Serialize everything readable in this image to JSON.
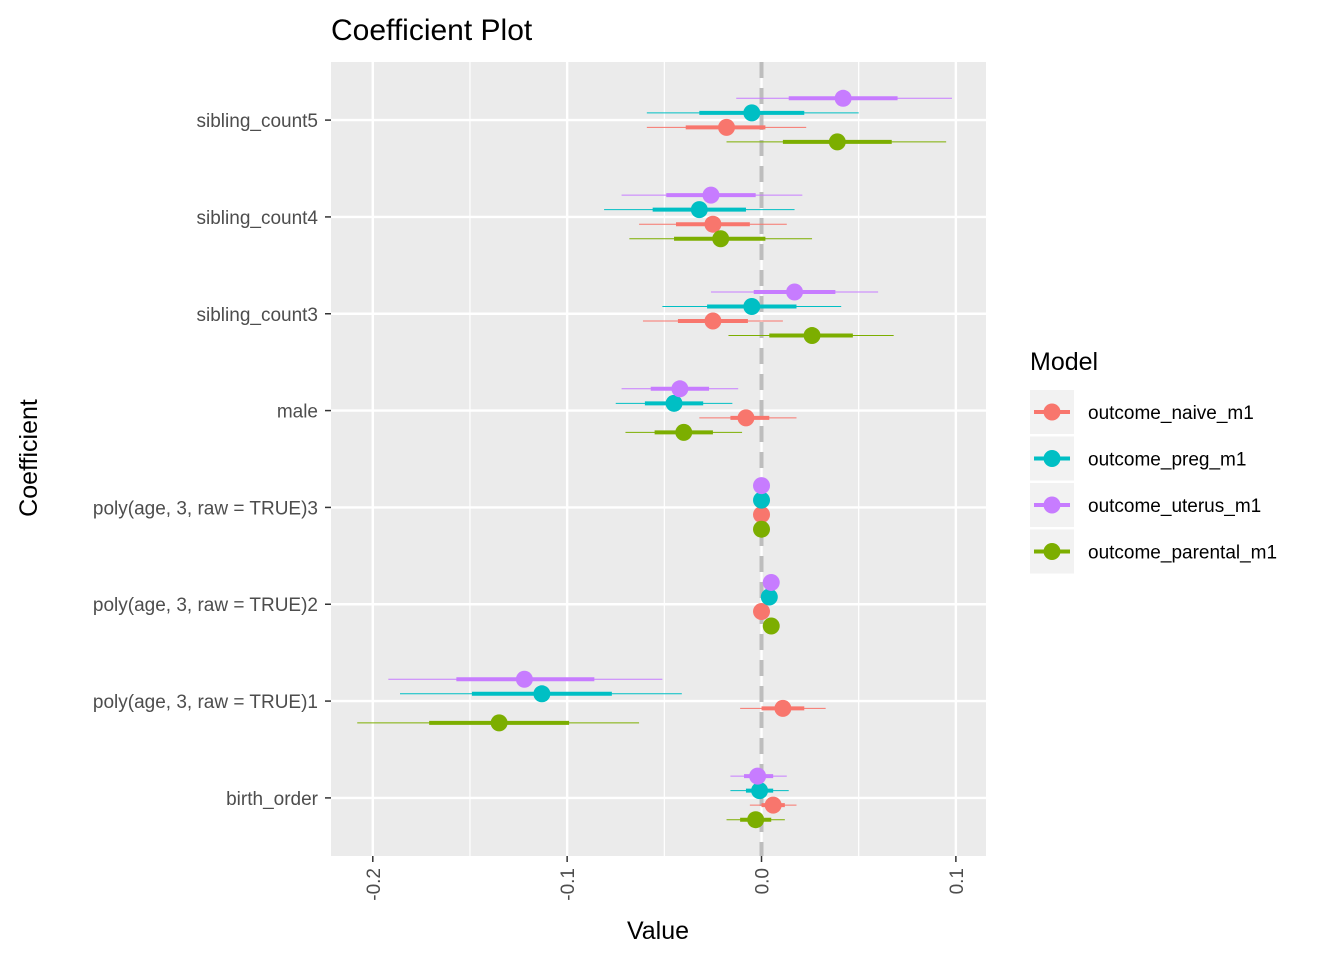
{
  "chart_data": {
    "type": "scatter",
    "title": "Coefficient Plot",
    "xlabel": "Value",
    "ylabel": "Coefficient",
    "xlim": [
      -0.2215,
      0.1155
    ],
    "x_ticks": [
      {
        "value": -0.2,
        "label": "-0.2"
      },
      {
        "value": -0.1,
        "label": "-0.1"
      },
      {
        "value": 0.0,
        "label": "0.0"
      },
      {
        "value": 0.1,
        "label": "0.1"
      }
    ],
    "reference_line": {
      "x": 0,
      "style": "dashed",
      "color": "#bdbdbd"
    },
    "categories": [
      "birth_order",
      "poly(age, 3, raw = TRUE)1",
      "poly(age, 3, raw = TRUE)2",
      "poly(age, 3, raw = TRUE)3",
      "male",
      "sibling_count3",
      "sibling_count4",
      "sibling_count5"
    ],
    "legend": {
      "title": "Model",
      "position": "right"
    },
    "grid": true,
    "panel_background": "#ebebeb",
    "series": [
      {
        "name": "outcome_naive_m1",
        "color": "#f8766d",
        "offset": -0.075,
        "estimates": [
          0.006,
          0.011,
          0.0,
          0.0,
          -0.008,
          -0.025,
          -0.025,
          -0.018
        ],
        "inner": [
          [
            0.0,
            0.012
          ],
          [
            0.0,
            0.022
          ],
          [
            0.0,
            0.0
          ],
          [
            0.0,
            0.0
          ],
          [
            -0.016,
            0.004
          ],
          [
            -0.043,
            -0.007
          ],
          [
            -0.044,
            -0.006
          ],
          [
            -0.039,
            0.002
          ]
        ],
        "outer": [
          [
            -0.006,
            0.018
          ],
          [
            -0.011,
            0.033
          ],
          [
            0.0,
            0.0
          ],
          [
            0.0,
            0.0
          ],
          [
            -0.032,
            0.018
          ],
          [
            -0.061,
            0.011
          ],
          [
            -0.063,
            0.013
          ],
          [
            -0.059,
            0.023
          ]
        ]
      },
      {
        "name": "outcome_preg_m1",
        "color": "#00bfc4",
        "offset": 0.075,
        "estimates": [
          -0.001,
          -0.113,
          0.004,
          0.0,
          -0.045,
          -0.005,
          -0.032,
          -0.005
        ],
        "inner": [
          [
            -0.008,
            0.006
          ],
          [
            -0.149,
            -0.077
          ],
          [
            0.004,
            0.004
          ],
          [
            0.0,
            0.0
          ],
          [
            -0.06,
            -0.03
          ],
          [
            -0.028,
            0.018
          ],
          [
            -0.056,
            -0.008
          ],
          [
            -0.032,
            0.022
          ]
        ],
        "outer": [
          [
            -0.016,
            0.014
          ],
          [
            -0.186,
            -0.041
          ],
          [
            0.004,
            0.004
          ],
          [
            0.0,
            0.0
          ],
          [
            -0.075,
            -0.015
          ],
          [
            -0.051,
            0.041
          ],
          [
            -0.081,
            0.017
          ],
          [
            -0.059,
            0.05
          ]
        ]
      },
      {
        "name": "outcome_uterus_m1",
        "color": "#c77cff",
        "offset": 0.225,
        "estimates": [
          -0.002,
          -0.122,
          0.005,
          0.0,
          -0.042,
          0.017,
          -0.026,
          0.042
        ],
        "inner": [
          [
            -0.009,
            0.006
          ],
          [
            -0.157,
            -0.086
          ],
          [
            0.005,
            0.005
          ],
          [
            0.0,
            0.0
          ],
          [
            -0.057,
            -0.027
          ],
          [
            -0.004,
            0.038
          ],
          [
            -0.049,
            -0.003
          ],
          [
            0.014,
            0.07
          ]
        ],
        "outer": [
          [
            -0.016,
            0.013
          ],
          [
            -0.192,
            -0.051
          ],
          [
            0.005,
            0.005
          ],
          [
            0.0,
            0.0
          ],
          [
            -0.072,
            -0.012
          ],
          [
            -0.026,
            0.06
          ],
          [
            -0.072,
            0.021
          ],
          [
            -0.013,
            0.098
          ]
        ]
      },
      {
        "name": "outcome_parental_m1",
        "color": "#7cae00",
        "offset": -0.225,
        "estimates": [
          -0.003,
          -0.135,
          0.005,
          0.0,
          -0.04,
          0.026,
          -0.021,
          0.039
        ],
        "inner": [
          [
            -0.011,
            0.005
          ],
          [
            -0.171,
            -0.099
          ],
          [
            0.005,
            0.005
          ],
          [
            0.0,
            0.0
          ],
          [
            -0.055,
            -0.025
          ],
          [
            0.004,
            0.047
          ],
          [
            -0.045,
            0.002
          ],
          [
            0.011,
            0.067
          ]
        ],
        "outer": [
          [
            -0.018,
            0.012
          ],
          [
            -0.208,
            -0.063
          ],
          [
            0.005,
            0.005
          ],
          [
            0.0,
            0.0
          ],
          [
            -0.07,
            -0.01
          ],
          [
            -0.017,
            0.068
          ],
          [
            -0.068,
            0.026
          ],
          [
            -0.018,
            0.095
          ]
        ]
      }
    ]
  }
}
